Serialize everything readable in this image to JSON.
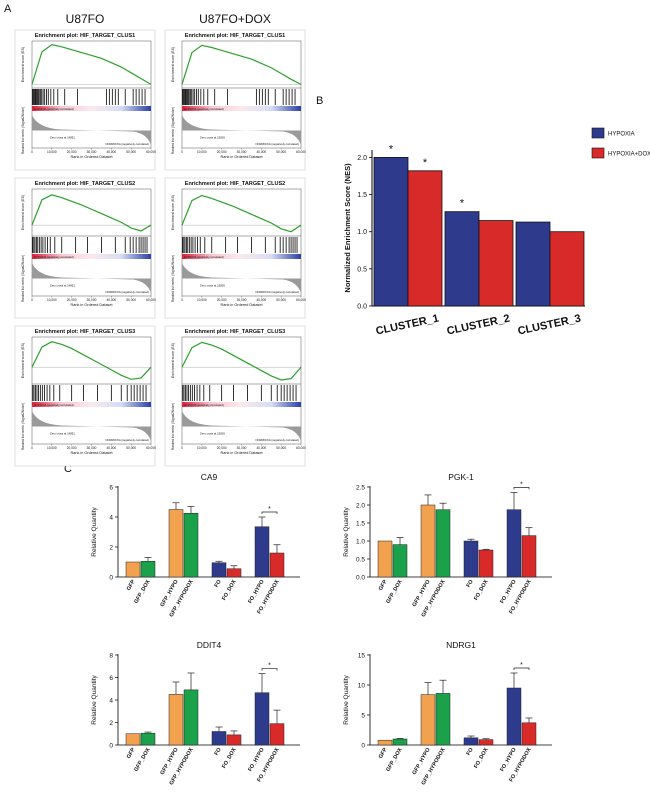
{
  "panel_labels": [
    "A",
    "B",
    "C"
  ],
  "column_titles": [
    "U87FO",
    "U87FO+DOX"
  ],
  "chart_data": [
    {
      "type": "gsea",
      "title": "Enrichment plot: HIF_TARGET_CLUS1",
      "ylabel": "Enrichment score (ES)",
      "ylabel2": "Ranked list metric (Signal2Noise)",
      "xlabel": "Rank in Ordered Dataset",
      "positive_label": "HYPOXIA (positively correlated)",
      "negative_label": "NORMOXIA (negatively correlated)",
      "zero_cross": "Zero cross at 14851",
      "color": "#2ca02c",
      "x": [
        0,
        5000,
        10000,
        15000,
        20000,
        25000,
        30000,
        35000,
        40000,
        45000,
        50000,
        55000,
        60000
      ],
      "es": [
        0,
        0.45,
        0.55,
        0.52,
        0.48,
        0.44,
        0.4,
        0.36,
        0.3,
        0.24,
        0.16,
        0.08,
        0
      ],
      "hits": [
        300,
        800,
        1200,
        1700,
        2100,
        2600,
        3100,
        3600,
        4200,
        4900,
        5600,
        6400,
        7300,
        8200,
        9500,
        11000,
        13000,
        16500,
        23000,
        37500,
        39000,
        40500,
        42000,
        43500,
        47000,
        51000,
        52500,
        54000,
        55500,
        57000
      ],
      "xlim": [
        0,
        60000
      ],
      "ylim": [
        -0.05,
        0.6
      ],
      "xticks": [
        0,
        {
          "value": 10000,
          "label": "10,000"
        },
        {
          "value": 20000,
          "label": "20,000"
        },
        {
          "value": 30000,
          "label": "30,000"
        },
        {
          "value": 40000,
          "label": "40,000"
        },
        {
          "value": 50000,
          "label": "50,000"
        },
        {
          "value": 60000,
          "label": "60,000"
        }
      ]
    },
    {
      "type": "gsea",
      "title": "Enrichment plot: HIF_TARGET_CLUS1",
      "ylabel": "Enrichment score (ES)",
      "ylabel2": "Ranked list metric (Signal2Noise)",
      "xlabel": "Rank in Ordered Dataset",
      "positive_label": "HYPOXIA (positively correlated)",
      "negative_label": "NORMOXIA (negatively correlated)",
      "zero_cross": "Zero cross at 15826",
      "color": "#2ca02c",
      "x": [
        0,
        5000,
        10000,
        15000,
        20000,
        25000,
        30000,
        35000,
        40000,
        45000,
        50000,
        55000,
        60000
      ],
      "es": [
        0,
        0.44,
        0.54,
        0.51,
        0.47,
        0.43,
        0.39,
        0.35,
        0.29,
        0.23,
        0.15,
        0.07,
        0
      ],
      "hits": [
        300,
        800,
        1200,
        1700,
        2100,
        2600,
        3100,
        3600,
        4200,
        4900,
        5600,
        6400,
        7300,
        8200,
        9500,
        11000,
        13000,
        16500,
        23000,
        37500,
        39000,
        40500,
        42000,
        43500,
        47000,
        51000,
        52500,
        54000,
        55500,
        57000
      ],
      "xlim": [
        0,
        60000
      ],
      "ylim": [
        -0.05,
        0.6
      ],
      "xticks": [
        0,
        {
          "value": 10000,
          "label": "10,000"
        },
        {
          "value": 20000,
          "label": "20,000"
        },
        {
          "value": 30000,
          "label": "30,000"
        },
        {
          "value": 40000,
          "label": "40,000"
        },
        {
          "value": 50000,
          "label": "50,000"
        },
        {
          "value": 60000,
          "label": "60,000"
        }
      ]
    },
    {
      "type": "gsea",
      "title": "Enrichment plot: HIF_TARGET_CLUS2",
      "ylabel": "Enrichment score (ES)",
      "ylabel2": "Ranked list metric (Signal2Noise)",
      "xlabel": "Rank in Ordered Dataset",
      "positive_label": "HYPOXIA (positively correlated)",
      "negative_label": "NORMOXIA (negatively correlated)",
      "zero_cross": "Zero cross at 14851",
      "color": "#2ca02c",
      "x": [
        0,
        5000,
        10000,
        15000,
        20000,
        25000,
        30000,
        35000,
        40000,
        45000,
        50000,
        55000,
        60000
      ],
      "es": [
        0,
        0.35,
        0.42,
        0.38,
        0.33,
        0.28,
        0.22,
        0.16,
        0.1,
        0.04,
        -0.04,
        -0.08,
        0
      ],
      "hits": [
        300,
        900,
        1500,
        2200,
        2900,
        3700,
        4600,
        5500,
        6600,
        7800,
        9200,
        11500,
        15000,
        22000,
        28000,
        35000,
        42000,
        47000,
        49500,
        51000,
        52500,
        54000,
        55000,
        56000,
        57000,
        58000
      ],
      "xlim": [
        0,
        60000
      ],
      "ylim": [
        -0.15,
        0.5
      ],
      "xticks": [
        0,
        {
          "value": 10000,
          "label": "10,000"
        },
        {
          "value": 20000,
          "label": "20,000"
        },
        {
          "value": 30000,
          "label": "30,000"
        },
        {
          "value": 40000,
          "label": "40,000"
        },
        {
          "value": 50000,
          "label": "50,000"
        },
        {
          "value": 60000,
          "label": "60,000"
        }
      ]
    },
    {
      "type": "gsea",
      "title": "Enrichment plot: HIF_TARGET_CLUS2",
      "ylabel": "Enrichment score (ES)",
      "ylabel2": "Ranked list metric (Signal2Noise)",
      "xlabel": "Rank in Ordered Dataset",
      "positive_label": "HYPOXIA (positively correlated)",
      "negative_label": "NORMOXIA (negatively correlated)",
      "zero_cross": "Zero cross at 15826",
      "color": "#2ca02c",
      "x": [
        0,
        5000,
        10000,
        15000,
        20000,
        25000,
        30000,
        35000,
        40000,
        45000,
        50000,
        55000,
        60000
      ],
      "es": [
        0,
        0.34,
        0.41,
        0.37,
        0.32,
        0.27,
        0.21,
        0.15,
        0.09,
        0.03,
        -0.05,
        -0.09,
        0
      ],
      "hits": [
        300,
        900,
        1500,
        2200,
        2900,
        3700,
        4600,
        5500,
        6600,
        7800,
        9200,
        11500,
        15000,
        22000,
        28000,
        35000,
        42000,
        47000,
        49500,
        51000,
        52500,
        54000,
        55000,
        56000,
        57000,
        58000
      ],
      "xlim": [
        0,
        60000
      ],
      "ylim": [
        -0.15,
        0.5
      ],
      "xticks": [
        0,
        {
          "value": 10000,
          "label": "10,000"
        },
        {
          "value": 20000,
          "label": "20,000"
        },
        {
          "value": 30000,
          "label": "30,000"
        },
        {
          "value": 40000,
          "label": "40,000"
        },
        {
          "value": 50000,
          "label": "50,000"
        },
        {
          "value": 60000,
          "label": "60,000"
        }
      ]
    },
    {
      "type": "gsea",
      "title": "Enrichment plot: HIF_TARGET_CLUS3",
      "ylabel": "Enrichment score (ES)",
      "ylabel2": "Ranked list metric (Signal2Noise)",
      "xlabel": "Rank in Ordered Dataset",
      "positive_label": "HYPOXIA (positively correlated)",
      "negative_label": "NORMOXIA (negatively correlated)",
      "zero_cross": "Zero cross at 14851",
      "color": "#2ca02c",
      "x": [
        0,
        5000,
        10000,
        15000,
        20000,
        25000,
        30000,
        35000,
        40000,
        45000,
        50000,
        55000,
        60000
      ],
      "es": [
        0,
        0.3,
        0.38,
        0.34,
        0.28,
        0.2,
        0.12,
        0.04,
        -0.04,
        -0.12,
        -0.18,
        -0.16,
        0
      ],
      "hits": [
        400,
        1000,
        1700,
        2500,
        3300,
        4200,
        5200,
        6300,
        7600,
        9000,
        11000,
        14000,
        20000,
        26000,
        33000,
        40000,
        45000,
        48000,
        50000,
        51500,
        53000,
        54500,
        56000,
        57500
      ],
      "xlim": [
        0,
        60000
      ],
      "ylim": [
        -0.25,
        0.45
      ],
      "xticks": [
        0,
        {
          "value": 10000,
          "label": "10,000"
        },
        {
          "value": 20000,
          "label": "20,000"
        },
        {
          "value": 30000,
          "label": "30,000"
        },
        {
          "value": 40000,
          "label": "40,000"
        },
        {
          "value": 50000,
          "label": "50,000"
        },
        {
          "value": 60000,
          "label": "60,000"
        }
      ]
    },
    {
      "type": "gsea",
      "title": "Enrichment plot: HIF_TARGET_CLUS3",
      "ylabel": "Enrichment score (ES)",
      "ylabel2": "Ranked list metric (Signal2Noise)",
      "xlabel": "Rank in Ordered Dataset",
      "positive_label": "HYPOXIA (positively correlated)",
      "negative_label": "NORMOXIA (negatively correlated)",
      "zero_cross": "Zero cross at 15826",
      "color": "#2ca02c",
      "x": [
        0,
        5000,
        10000,
        15000,
        20000,
        25000,
        30000,
        35000,
        40000,
        45000,
        50000,
        55000,
        60000
      ],
      "es": [
        0,
        0.29,
        0.37,
        0.33,
        0.27,
        0.19,
        0.11,
        0.03,
        -0.05,
        -0.13,
        -0.19,
        -0.17,
        0
      ],
      "hits": [
        400,
        1000,
        1700,
        2500,
        3300,
        4200,
        5200,
        6300,
        7600,
        9000,
        11000,
        14000,
        20000,
        26000,
        33000,
        40000,
        45000,
        48000,
        50000,
        51500,
        53000,
        54500,
        56000,
        57500
      ],
      "xlim": [
        0,
        60000
      ],
      "ylim": [
        -0.25,
        0.45
      ],
      "xticks": [
        0,
        {
          "value": 10000,
          "label": "10,000"
        },
        {
          "value": 20000,
          "label": "20,000"
        },
        {
          "value": 30000,
          "label": "30,000"
        },
        {
          "value": 40000,
          "label": "40,000"
        },
        {
          "value": 50000,
          "label": "50,000"
        },
        {
          "value": 60000,
          "label": "60,000"
        }
      ]
    },
    {
      "type": "grouped-bar",
      "ylabel": "Normalized Enrichment Score (NES)",
      "categories": [
        "CLUSTER_1",
        "CLUSTER_2",
        "CLUSTER_3"
      ],
      "series": [
        {
          "name": "HYPOXIA",
          "color": "#2e3a8c",
          "values": [
            2.0,
            1.27,
            1.13
          ],
          "marker_labels": [
            "*",
            "*",
            null
          ]
        },
        {
          "name": "HYPOXIA+DOX",
          "color": "#d92a2a",
          "values": [
            1.82,
            1.15,
            1.0
          ],
          "marker_labels": [
            "*",
            null,
            null
          ]
        }
      ],
      "ylim": [
        0,
        2.1
      ],
      "yticks": [
        {
          "value": 0,
          "label": "0.0"
        },
        {
          "value": 0.5,
          "label": "0.5"
        },
        {
          "value": 1,
          "label": "1.0"
        },
        {
          "value": 1.5,
          "label": "1.5"
        },
        {
          "value": 2,
          "label": "2.0"
        }
      ],
      "legend": "upper-right"
    },
    {
      "type": "bar",
      "title": "CA9",
      "ylabel": "Relative Quantity",
      "categories": [
        "GFP",
        "GFP_DOX",
        "GFP_HYPO",
        "GFP_HYPODOX",
        "FO",
        "FO_DOX",
        "FO_HYPO",
        "FO_HYPODOX"
      ],
      "colors": [
        "#f2a24e",
        "#1aa14a",
        "#f2a24e",
        "#1aa14a",
        "#2e3a8c",
        "#d92a2a",
        "#2e3a8c",
        "#d92a2a"
      ],
      "values": [
        1,
        1.05,
        4.5,
        4.25,
        0.95,
        0.55,
        3.35,
        1.6
      ],
      "errors": [
        0,
        0.25,
        0.45,
        0.45,
        0.1,
        0.2,
        0.65,
        0.55
      ],
      "significance": "*",
      "ylim": [
        0,
        6
      ],
      "yticks": [
        0,
        2,
        4,
        6
      ]
    },
    {
      "type": "bar",
      "title": "PGK-1",
      "ylabel": "Relative Quantity",
      "categories": [
        "GFP",
        "GFP_DOX",
        "GFP_HYPO",
        "GFP_HYPODOX",
        "FO",
        "FO_DOX",
        "FO_HYPO",
        "FO_HYPODOX"
      ],
      "colors": [
        "#f2a24e",
        "#1aa14a",
        "#f2a24e",
        "#1aa14a",
        "#2e3a8c",
        "#d92a2a",
        "#2e3a8c",
        "#d92a2a"
      ],
      "values": [
        1,
        0.9,
        2.0,
        1.87,
        1.0,
        0.75,
        1.87,
        1.15
      ],
      "errors": [
        0,
        0.2,
        0.28,
        0.18,
        0.05,
        0.02,
        0.48,
        0.22
      ],
      "significance": "*",
      "ylim": [
        0,
        2.5
      ],
      "yticks": [
        {
          "value": 0,
          "label": "0.0"
        },
        {
          "value": 0.5,
          "label": "0.5"
        },
        {
          "value": 1,
          "label": "1.0"
        },
        {
          "value": 1.5,
          "label": "1.5"
        },
        {
          "value": 2,
          "label": "2.0"
        },
        {
          "value": 2.5,
          "label": "2.5"
        }
      ]
    },
    {
      "type": "bar",
      "title": "DDIT4",
      "ylabel": "Relative Quantity",
      "categories": [
        "GFP",
        "GFP_DOX",
        "GFP_HYPO",
        "GFP_HYPODOX",
        "FO",
        "FO_DOX",
        "FO_HYPO",
        "FO_HYPODOX"
      ],
      "colors": [
        "#f2a24e",
        "#1aa14a",
        "#f2a24e",
        "#1aa14a",
        "#2e3a8c",
        "#d92a2a",
        "#2e3a8c",
        "#d92a2a"
      ],
      "values": [
        1,
        1.05,
        4.5,
        4.9,
        1.2,
        0.9,
        4.65,
        1.9
      ],
      "errors": [
        0,
        0.1,
        1.1,
        1.5,
        0.4,
        0.35,
        1.7,
        1.2
      ],
      "significance": "*",
      "ylim": [
        0,
        8
      ],
      "yticks": [
        0,
        2,
        4,
        6,
        8
      ]
    },
    {
      "type": "bar",
      "title": "NDRG1",
      "ylabel": "Relative Quantity",
      "categories": [
        "GFP",
        "GFP_DOX",
        "GFP_HYPO",
        "GFP_HYPODOX",
        "FO",
        "FO_DOX",
        "FO_HYPO",
        "FO_HYPODOX"
      ],
      "colors": [
        "#f2a24e",
        "#1aa14a",
        "#f2a24e",
        "#1aa14a",
        "#2e3a8c",
        "#d92a2a",
        "#2e3a8c",
        "#d92a2a"
      ],
      "values": [
        0.8,
        1.0,
        8.4,
        8.6,
        1.2,
        0.9,
        9.5,
        3.7
      ],
      "errors": [
        0,
        0.1,
        2.0,
        2.2,
        0.3,
        0.15,
        2.5,
        0.8
      ],
      "significance": "*",
      "ylim": [
        0,
        15
      ],
      "yticks": [
        0,
        5,
        10,
        15
      ]
    }
  ]
}
